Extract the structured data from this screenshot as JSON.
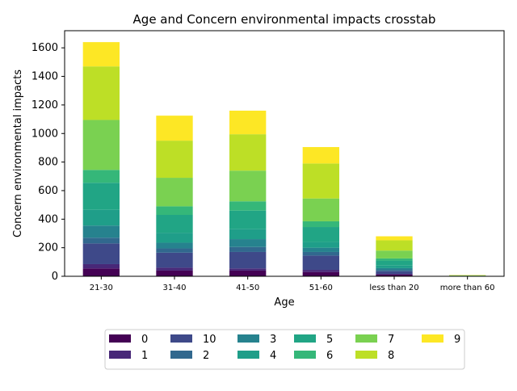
{
  "chart_data": {
    "type": "bar",
    "stacked": true,
    "title": "Age and Concern environmental impacts crosstab",
    "xlabel": "Age",
    "ylabel": "Concern environmental impacts",
    "categories": [
      "21-30",
      "31-40",
      "41-50",
      "51-60",
      "less than 20",
      "more than 60"
    ],
    "ylim": [
      0,
      1720
    ],
    "yticks": [
      0,
      200,
      400,
      600,
      800,
      1000,
      1200,
      1400,
      1600
    ],
    "grid": false,
    "legend_position": "bottom-center",
    "series": [
      {
        "name": "0",
        "color": "#440154",
        "values": [
          55,
          40,
          40,
          30,
          12,
          0
        ]
      },
      {
        "name": "1",
        "color": "#482878",
        "values": [
          30,
          20,
          15,
          15,
          5,
          0
        ]
      },
      {
        "name": "10",
        "color": "#3e4989",
        "values": [
          145,
          105,
          115,
          100,
          18,
          1
        ]
      },
      {
        "name": "2",
        "color": "#31688e",
        "values": [
          40,
          30,
          35,
          25,
          10,
          0
        ]
      },
      {
        "name": "3",
        "color": "#26828e",
        "values": [
          85,
          40,
          55,
          30,
          12,
          0
        ]
      },
      {
        "name": "4",
        "color": "#1f9e89",
        "values": [
          110,
          70,
          70,
          40,
          18,
          1
        ]
      },
      {
        "name": "5",
        "color": "#21a585",
        "values": [
          190,
          125,
          130,
          105,
          35,
          1
        ]
      },
      {
        "name": "6",
        "color": "#35b779",
        "values": [
          90,
          60,
          65,
          40,
          15,
          1
        ]
      },
      {
        "name": "7",
        "color": "#7ad151",
        "values": [
          350,
          200,
          215,
          160,
          55,
          2
        ]
      },
      {
        "name": "8",
        "color": "#bddf26",
        "values": [
          375,
          260,
          255,
          245,
          72,
          2
        ]
      },
      {
        "name": "9",
        "color": "#fde725",
        "values": [
          170,
          175,
          165,
          115,
          28,
          1
        ]
      }
    ]
  }
}
